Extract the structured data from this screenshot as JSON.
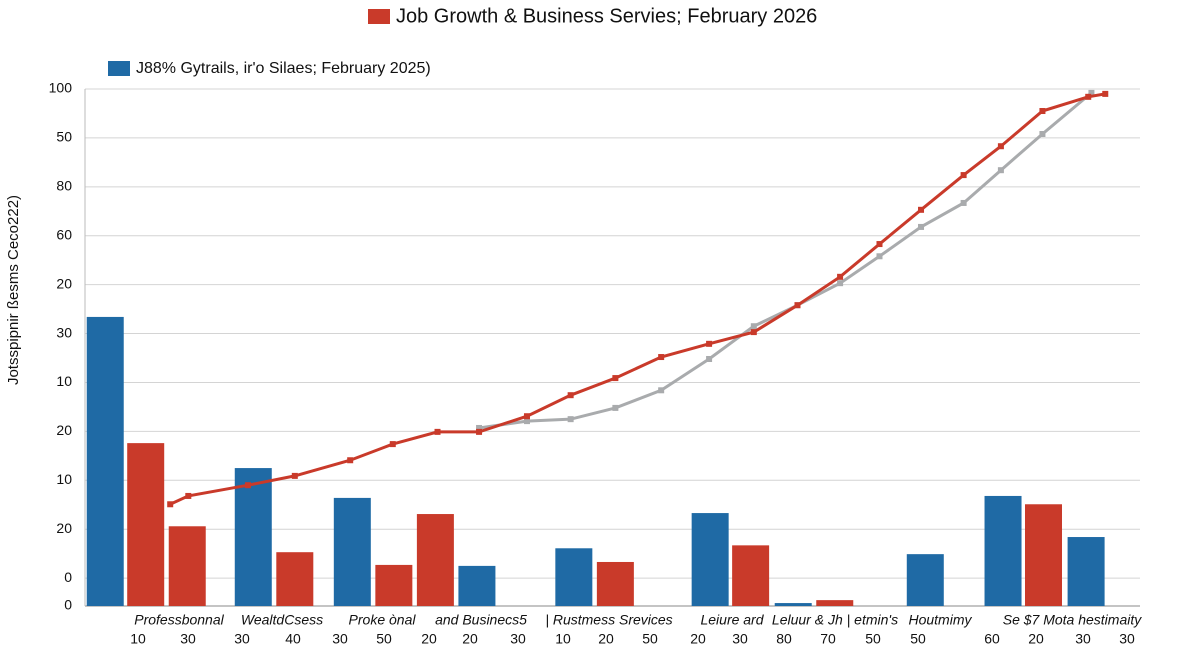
{
  "chart_data": {
    "type": "bar",
    "y_label": "Jotsspipnir ßesms Ceco222)",
    "xlim": [
      0,
      100
    ],
    "ylim": [
      -5.7,
      100
    ],
    "yticks": [
      {
        "value": -5.7,
        "label": "0"
      },
      0,
      {
        "value": 10,
        "label": "20"
      },
      {
        "value": 20,
        "label": "10"
      },
      {
        "value": 30,
        "label": "20"
      },
      {
        "value": 40,
        "label": "10"
      },
      {
        "value": 50,
        "label": "30"
      },
      {
        "value": 60,
        "label": "20"
      },
      {
        "value": 70,
        "label": "60"
      },
      {
        "value": 80,
        "label": "80"
      },
      {
        "value": 90,
        "label": "50"
      },
      100
    ],
    "grid": true,
    "x_labels": [
      "Professbonnal",
      "WealtdCsess",
      "Proke ònal",
      "and Businecs5",
      "| Rustmess Srevices",
      "Leiure ard",
      "Leluur & Jh | etmin's",
      "Houtmimy",
      "Se $7 Mota hestimaity"
    ],
    "x_numbers": [
      "10",
      "30",
      "30",
      "40",
      "30",
      "50",
      "20",
      "20",
      "30",
      "10",
      "20",
      "50",
      "20",
      "30",
      "80",
      "70",
      "50",
      "50",
      "60",
      "20",
      "30",
      "30"
    ],
    "series": [
      {
        "name": "J88% Gytrails, ir'o Silaes; February 2025)",
        "type": "bar",
        "color": "#1f6aa5",
        "x": [
          1.9,
          15.8,
          25.1,
          36.8,
          45.9,
          58.7,
          66.5,
          78.9,
          86.2,
          94.0
        ],
        "values": [
          53.4,
          22.5,
          16.4,
          2.5,
          6.1,
          13.3,
          -5.1,
          4.9,
          16.8,
          8.4
        ]
      },
      {
        "name": "Job Growth & Business Servies; February 2026",
        "type": "bar",
        "color": "#c93a2a",
        "x": [
          5.7,
          9.6,
          19.7,
          29.0,
          32.9,
          49.8,
          62.5,
          70.4,
          90.0
        ],
        "values": [
          27.6,
          10.6,
          5.3,
          2.7,
          13.1,
          3.3,
          6.7,
          -4.5,
          15.1
        ]
      },
      {
        "type": "line",
        "color": "#a9abad",
        "x": [
          37.0,
          41.5,
          45.6,
          49.8,
          54.1,
          58.6,
          62.8,
          66.9,
          70.9,
          74.6,
          78.5,
          82.5,
          86.0,
          89.9,
          94.5
        ],
        "values": [
          30.7,
          32.1,
          32.5,
          34.8,
          38.4,
          44.8,
          51.5,
          55.8,
          60.3,
          65.8,
          71.8,
          76.7,
          83.4,
          90.8,
          99.2
        ]
      },
      {
        "type": "line",
        "color": "#c93a2a",
        "x": [
          8.0,
          9.7,
          15.3,
          19.7,
          24.9,
          28.9,
          33.1,
          37.0,
          41.5,
          45.6,
          49.8,
          54.1,
          58.6,
          62.8,
          66.9,
          70.9,
          74.6,
          78.5,
          82.5,
          86.0,
          89.9,
          94.2,
          95.8
        ],
        "values": [
          15.1,
          16.8,
          19.0,
          20.9,
          24.1,
          27.4,
          29.9,
          29.9,
          33.1,
          37.4,
          40.9,
          45.2,
          47.9,
          50.3,
          55.8,
          61.6,
          68.3,
          75.3,
          82.4,
          88.3,
          95.5,
          98.4,
          99.0
        ]
      }
    ]
  }
}
